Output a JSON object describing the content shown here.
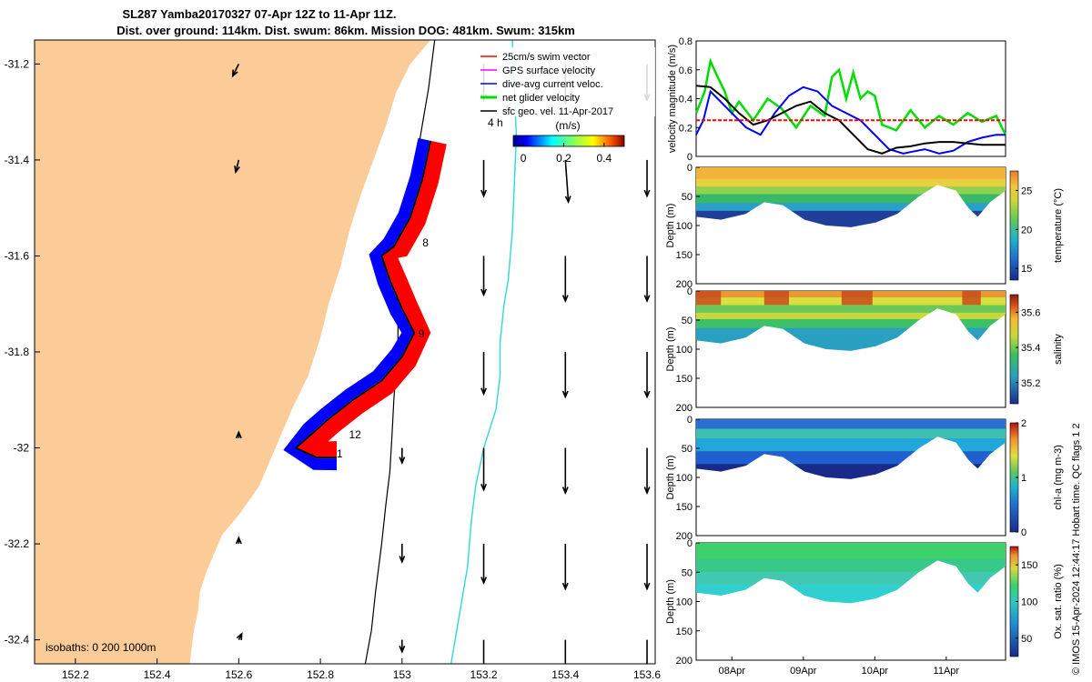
{
  "title": {
    "line1": "SL287 Yamba20170327 07-Apr 12Z to 11-Apr 11Z.",
    "line2": "Dist. over ground: 114km. Dist. swum: 86km. Mission DOG: 481km. Swum: 315km"
  },
  "colors": {
    "land": "#fbcb98",
    "swim_vector": "#ff0000",
    "gps_velocity": "#ff00ff",
    "dive_avg": "#0000ff",
    "net_glider": "#00dd00",
    "sfc_geo": "#000000",
    "contour": "#30d8d8"
  },
  "footer_text": "© IMOS 15-Apr-2024 12:44:17 Hobart time. QC flags 1 2",
  "chart_data": [
    {
      "type": "map",
      "xlim": [
        152.1,
        153.62
      ],
      "ylim": [
        -32.45,
        -31.15
      ],
      "x_ticks": [
        "152.2",
        "152.4",
        "152.6",
        "152.8",
        "153",
        "153.2",
        "153.4",
        "153.6"
      ],
      "x_tick_values": [
        152.2,
        152.4,
        152.6,
        152.8,
        153.0,
        153.2,
        153.4,
        153.6
      ],
      "y_ticks": [
        "-31.2",
        "-31.4",
        "-31.6",
        "-31.8",
        "-32",
        "-32.2",
        "-32.4"
      ],
      "y_tick_values": [
        -31.2,
        -31.4,
        -31.6,
        -31.8,
        -32.0,
        -32.2,
        -32.4
      ],
      "legend": [
        {
          "label": "25cm/s swim vector",
          "color": "#ff0000"
        },
        {
          "label": "GPS surface velocity",
          "color": "#ff00ff"
        },
        {
          "label": "dive-avg current veloc.",
          "color": "#0000ff"
        },
        {
          "label": "net glider velocity",
          "color": "#00dd00"
        },
        {
          "label": "sfc geo. vel. 11-Apr-2017",
          "color": "#000000"
        }
      ],
      "colorbar": {
        "label": "(m/s)",
        "ticks": [
          "0",
          "0.2",
          "0.4"
        ],
        "tick_values": [
          0,
          0.2,
          0.4
        ],
        "range": [
          -0.05,
          0.5
        ]
      },
      "isobaths_label": "isobaths: 0   200  1000m",
      "coastline": [
        [
          153.07,
          -31.15
        ],
        [
          153.02,
          -31.2
        ],
        [
          152.985,
          -31.26
        ],
        [
          152.96,
          -31.33
        ],
        [
          152.93,
          -31.4
        ],
        [
          152.9,
          -31.47
        ],
        [
          152.87,
          -31.55
        ],
        [
          152.85,
          -31.62
        ],
        [
          152.82,
          -31.7
        ],
        [
          152.8,
          -31.77
        ],
        [
          152.77,
          -31.85
        ],
        [
          152.73,
          -31.92
        ],
        [
          152.7,
          -31.98
        ],
        [
          152.68,
          -32.02
        ],
        [
          152.65,
          -32.08
        ],
        [
          152.6,
          -32.14
        ],
        [
          152.56,
          -32.18
        ],
        [
          152.54,
          -32.22
        ],
        [
          152.52,
          -32.26
        ],
        [
          152.505,
          -32.3
        ],
        [
          152.5,
          -32.34
        ],
        [
          152.49,
          -32.38
        ],
        [
          152.48,
          -32.45
        ]
      ],
      "isobath_200m": [
        [
          153.08,
          -31.15
        ],
        [
          153.065,
          -31.25
        ],
        [
          153.045,
          -31.35
        ],
        [
          153.03,
          -31.42
        ],
        [
          153.0,
          -31.5
        ],
        [
          152.99,
          -31.58
        ],
        [
          152.985,
          -31.65
        ],
        [
          152.99,
          -31.72
        ],
        [
          152.99,
          -31.78
        ],
        [
          152.985,
          -31.84
        ],
        [
          152.98,
          -31.9
        ],
        [
          152.975,
          -31.98
        ],
        [
          152.97,
          -32.05
        ],
        [
          152.96,
          -32.12
        ],
        [
          152.95,
          -32.2
        ],
        [
          152.935,
          -32.3
        ],
        [
          152.925,
          -32.38
        ],
        [
          152.91,
          -32.45
        ]
      ],
      "isobath_1000m": [
        [
          153.27,
          -31.15
        ],
        [
          153.275,
          -31.25
        ],
        [
          153.28,
          -31.35
        ],
        [
          153.275,
          -31.45
        ],
        [
          153.27,
          -31.55
        ],
        [
          153.26,
          -31.65
        ],
        [
          153.25,
          -31.7
        ],
        [
          153.24,
          -31.78
        ],
        [
          153.24,
          -31.85
        ],
        [
          153.23,
          -31.92
        ],
        [
          153.2,
          -32.0
        ],
        [
          153.18,
          -32.08
        ],
        [
          153.17,
          -32.15
        ],
        [
          153.16,
          -32.25
        ],
        [
          153.14,
          -32.35
        ],
        [
          153.12,
          -32.45
        ]
      ],
      "glider_track": [
        [
          153.07,
          -31.36
        ],
        [
          153.05,
          -31.44
        ],
        [
          153.02,
          -31.52
        ],
        [
          152.98,
          -31.58
        ],
        [
          152.95,
          -31.6
        ],
        [
          152.97,
          -31.65
        ],
        [
          153.0,
          -31.71
        ],
        [
          153.03,
          -31.76
        ],
        [
          153.0,
          -31.81
        ],
        [
          152.95,
          -31.86
        ],
        [
          152.88,
          -31.9
        ],
        [
          152.82,
          -31.94
        ],
        [
          152.78,
          -31.97
        ],
        [
          152.74,
          -32.0
        ],
        [
          152.79,
          -32.02
        ],
        [
          152.84,
          -32.02
        ]
      ],
      "track_labels": [
        {
          "text": "8",
          "lon": 153.05,
          "lat": -31.58
        },
        {
          "text": "9",
          "lon": 153.04,
          "lat": -31.77
        },
        {
          "text": "12",
          "lon": 152.87,
          "lat": -31.98
        },
        {
          "text": "1",
          "lon": 152.84,
          "lat": -32.02
        },
        {
          "text": "4 h",
          "lon": 153.21,
          "lat": -31.33
        }
      ],
      "sfc_arrows": [
        {
          "lon": 152.6,
          "lat": -31.2,
          "u": -0.02,
          "v": -0.04
        },
        {
          "lon": 152.6,
          "lat": -31.4,
          "u": -0.01,
          "v": -0.04
        },
        {
          "lon": 153.2,
          "lat": -31.2,
          "u": 0.0,
          "v": -0.12
        },
        {
          "lon": 153.4,
          "lat": -31.2,
          "u": 0.0,
          "v": -0.13
        },
        {
          "lon": 153.6,
          "lat": -31.2,
          "u": 0.0,
          "v": -0.12
        },
        {
          "lon": 153.2,
          "lat": -31.4,
          "u": 0.0,
          "v": -0.12
        },
        {
          "lon": 153.4,
          "lat": -31.4,
          "u": 0.01,
          "v": -0.14
        },
        {
          "lon": 153.6,
          "lat": -31.4,
          "u": 0.0,
          "v": -0.12
        },
        {
          "lon": 153.2,
          "lat": -31.6,
          "u": 0.0,
          "v": -0.13
        },
        {
          "lon": 153.4,
          "lat": -31.6,
          "u": 0.0,
          "v": -0.15
        },
        {
          "lon": 153.6,
          "lat": -31.6,
          "u": 0.0,
          "v": -0.15
        },
        {
          "lon": 153.2,
          "lat": -31.8,
          "u": 0.0,
          "v": -0.14
        },
        {
          "lon": 153.4,
          "lat": -31.8,
          "u": 0.0,
          "v": -0.15
        },
        {
          "lon": 153.6,
          "lat": -31.8,
          "u": 0.0,
          "v": -0.15
        },
        {
          "lon": 153.0,
          "lat": -32.0,
          "u": 0.0,
          "v": -0.05
        },
        {
          "lon": 153.2,
          "lat": -32.0,
          "u": 0.0,
          "v": -0.14
        },
        {
          "lon": 153.4,
          "lat": -32.0,
          "u": 0.0,
          "v": -0.15
        },
        {
          "lon": 153.6,
          "lat": -32.0,
          "u": 0.0,
          "v": -0.15
        },
        {
          "lon": 153.0,
          "lat": -32.2,
          "u": 0.0,
          "v": -0.06
        },
        {
          "lon": 153.2,
          "lat": -32.2,
          "u": 0.0,
          "v": -0.13
        },
        {
          "lon": 153.4,
          "lat": -32.2,
          "u": 0.0,
          "v": -0.15
        },
        {
          "lon": 153.6,
          "lat": -32.2,
          "u": 0.0,
          "v": -0.15
        },
        {
          "lon": 153.0,
          "lat": -32.4,
          "u": 0.0,
          "v": -0.04
        },
        {
          "lon": 153.2,
          "lat": -32.4,
          "u": 0.0,
          "v": -0.12
        },
        {
          "lon": 153.4,
          "lat": -32.4,
          "u": 0.0,
          "v": -0.14
        },
        {
          "lon": 153.6,
          "lat": -32.4,
          "u": 0.0,
          "v": -0.13
        },
        {
          "lon": 152.6,
          "lat": -31.98,
          "u": 0.0,
          "v": 0.02
        },
        {
          "lon": 152.6,
          "lat": -32.2,
          "u": 0.0,
          "v": 0.02
        },
        {
          "lon": 152.6,
          "lat": -32.4,
          "u": 0.01,
          "v": 0.02
        }
      ]
    },
    {
      "type": "line",
      "ylabel": "velocity magnitude (m/s)",
      "xlim": [
        0,
        4.33
      ],
      "ylim": [
        0,
        0.8
      ],
      "y_ticks": [
        "0",
        "0.2",
        "0.4",
        "0.6",
        "0.8"
      ],
      "y_tick_values": [
        0,
        0.2,
        0.4,
        0.6,
        0.8
      ],
      "series": [
        {
          "color": "#00dd00",
          "x": [
            0.0,
            0.12,
            0.2,
            0.3,
            0.4,
            0.5,
            0.6,
            0.8,
            1.0,
            1.2,
            1.4,
            1.6,
            1.8,
            1.9,
            2.0,
            2.1,
            2.2,
            2.3,
            2.4,
            2.5,
            2.6,
            2.8,
            3.0,
            3.2,
            3.4,
            3.6,
            3.8,
            4.0,
            4.2,
            4.33
          ],
          "y": [
            0.3,
            0.45,
            0.66,
            0.55,
            0.45,
            0.3,
            0.38,
            0.25,
            0.4,
            0.33,
            0.2,
            0.35,
            0.28,
            0.55,
            0.6,
            0.4,
            0.58,
            0.4,
            0.45,
            0.42,
            0.22,
            0.18,
            0.32,
            0.2,
            0.28,
            0.22,
            0.3,
            0.24,
            0.28,
            0.15
          ]
        },
        {
          "color": "#0000ff",
          "x": [
            0.0,
            0.1,
            0.2,
            0.3,
            0.5,
            0.7,
            0.9,
            1.1,
            1.3,
            1.5,
            1.7,
            1.9,
            2.1,
            2.3,
            2.5,
            2.7,
            2.9,
            3.0,
            3.2,
            3.4,
            3.6,
            3.8,
            4.0,
            4.2,
            4.33
          ],
          "y": [
            0.15,
            0.25,
            0.45,
            0.4,
            0.3,
            0.2,
            0.15,
            0.3,
            0.42,
            0.48,
            0.45,
            0.35,
            0.3,
            0.25,
            0.15,
            0.05,
            0.02,
            0.03,
            0.05,
            0.02,
            0.04,
            0.1,
            0.13,
            0.15,
            0.15
          ]
        },
        {
          "color": "#000000",
          "x": [
            0.0,
            0.2,
            0.4,
            0.6,
            0.8,
            1.0,
            1.2,
            1.4,
            1.6,
            1.8,
            2.0,
            2.2,
            2.4,
            2.6,
            2.7,
            2.8,
            3.0,
            3.2,
            3.4,
            3.6,
            3.8,
            4.0,
            4.33
          ],
          "y": [
            0.49,
            0.48,
            0.4,
            0.3,
            0.22,
            0.25,
            0.3,
            0.35,
            0.38,
            0.3,
            0.25,
            0.15,
            0.05,
            0.02,
            0.04,
            0.06,
            0.07,
            0.09,
            0.1,
            0.1,
            0.09,
            0.08,
            0.08
          ]
        },
        {
          "color": "#ff0000",
          "dashed": true,
          "x": [
            0.0,
            4.33
          ],
          "y": [
            0.25,
            0.25
          ]
        }
      ]
    },
    {
      "type": "heatmap",
      "ylabel": "Depth (m)",
      "colorbar_label": "temperature (°C)",
      "ylim": [
        0,
        200
      ],
      "y_ticks": [
        "0",
        "50",
        "100",
        "150",
        "200"
      ],
      "y_tick_values": [
        0,
        50,
        100,
        150,
        200
      ],
      "cbar_ticks": [
        "15",
        "20",
        "25"
      ],
      "cbar_tick_values": [
        15,
        20,
        25
      ],
      "cbar_range": [
        13.5,
        27.5
      ]
    },
    {
      "type": "heatmap",
      "ylabel": "Depth (m)",
      "colorbar_label": "salinity",
      "ylim": [
        0,
        200
      ],
      "y_ticks": [
        "0",
        "50",
        "100",
        "150",
        "200"
      ],
      "y_tick_values": [
        0,
        50,
        100,
        150,
        200
      ],
      "cbar_ticks": [
        "35.2",
        "35.4",
        "35.6"
      ],
      "cbar_tick_values": [
        35.2,
        35.4,
        35.6
      ],
      "cbar_range": [
        35.08,
        35.7
      ]
    },
    {
      "type": "heatmap",
      "ylabel": "Depth (m)",
      "colorbar_label": "chl-a (mg m-3)",
      "ylim": [
        0,
        200
      ],
      "y_ticks": [
        "0",
        "50",
        "100",
        "150",
        "200"
      ],
      "y_tick_values": [
        0,
        50,
        100,
        150,
        200
      ],
      "cbar_ticks": [
        "0",
        "1",
        "2"
      ],
      "cbar_tick_values": [
        0,
        1,
        2
      ],
      "cbar_range": [
        0,
        2
      ]
    },
    {
      "type": "heatmap",
      "ylabel": "Depth (m)",
      "colorbar_label": "Ox. sat. ratio (%)",
      "ylim": [
        0,
        200
      ],
      "y_ticks": [
        "0",
        "50",
        "100",
        "150",
        "200"
      ],
      "y_tick_values": [
        0,
        50,
        100,
        150,
        200
      ],
      "x_ticks": [
        "08Apr",
        "09Apr",
        "10Apr",
        "11Apr"
      ],
      "x_tick_values": [
        0.5,
        1.5,
        2.5,
        3.5
      ],
      "cbar_ticks": [
        "50",
        "100",
        "150"
      ],
      "cbar_tick_values": [
        50,
        100,
        150
      ],
      "cbar_range": [
        25,
        175
      ]
    }
  ]
}
